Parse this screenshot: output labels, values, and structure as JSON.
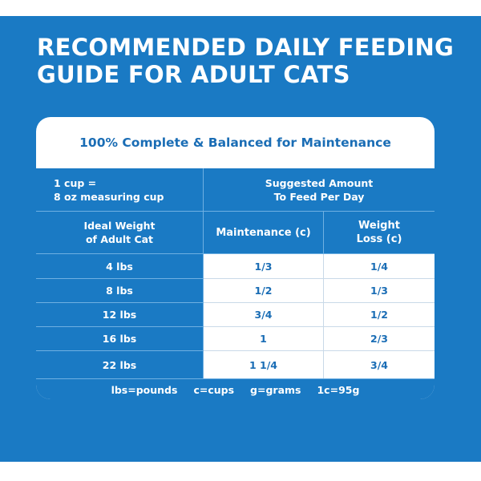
{
  "headline": [
    "RECOMMENDED DAILY FEEDING",
    "GUIDE FOR ADULT CATS"
  ],
  "card_title": "100% Complete & Balanced for Maintenance",
  "header": {
    "cup_line1": "1 cup =",
    "cup_line2": "8 oz measuring cup",
    "suggested_line1": "Suggested Amount",
    "suggested_line2": "To Feed Per Day",
    "weight_line1": "Ideal Weight",
    "weight_line2": "of Adult Cat",
    "maintenance": "Maintenance (c)",
    "loss_line1": "Weight",
    "loss_line2": "Loss (c)"
  },
  "rows": [
    {
      "weight": "4 lbs",
      "maintenance": "1/3",
      "loss": "1/4"
    },
    {
      "weight": "8 lbs",
      "maintenance": "1/2",
      "loss": "1/3"
    },
    {
      "weight": "12 lbs",
      "maintenance": "3/4",
      "loss": "1/2"
    },
    {
      "weight": "16 lbs",
      "maintenance": "1",
      "loss": "2/3"
    },
    {
      "weight": "22 lbs",
      "maintenance": "1 1/4",
      "loss": "3/4"
    }
  ],
  "footer": [
    "lbs=pounds",
    "c=cups",
    "g=grams",
    "1c=95g"
  ],
  "colors": {
    "brand_blue": "#1a7ac4",
    "text_blue": "#1a6db5",
    "white": "#ffffff"
  }
}
